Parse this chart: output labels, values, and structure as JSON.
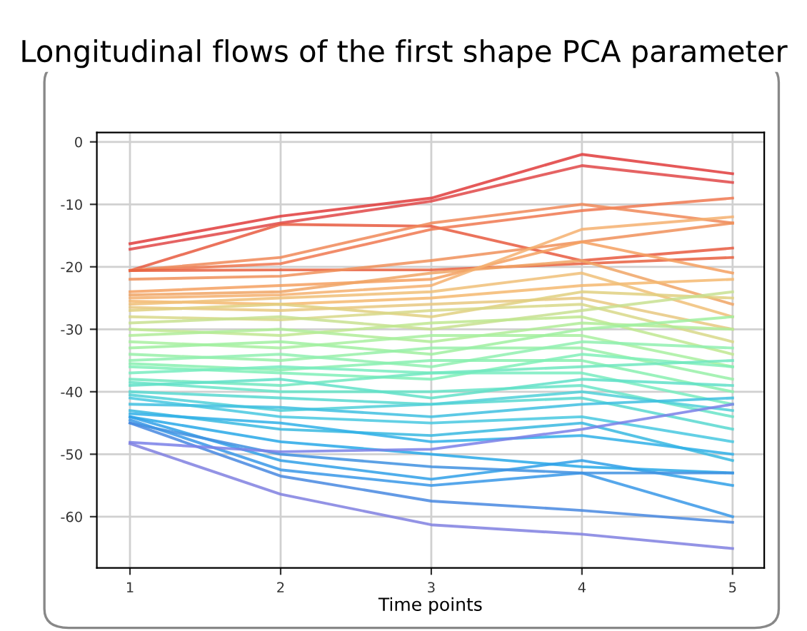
{
  "chart_data": {
    "type": "line",
    "title": "Longitudinal flows of the first shape PCA parameter",
    "xlabel": "Time points",
    "x": [
      1,
      2,
      3,
      4,
      5
    ],
    "xlim": [
      0.78,
      5.21
    ],
    "xticks": [
      1,
      2,
      3,
      4,
      5
    ],
    "ylim": [
      -68.2,
      1.5
    ],
    "yticks": [
      0,
      -10,
      -20,
      -30,
      -40,
      -50,
      -60
    ],
    "grid": true,
    "marker": "none",
    "line_style": "solid",
    "series": [
      {
        "color": "#e03c3c",
        "values": [
          -16.3,
          -11.9,
          -9,
          -2,
          -5.1
        ]
      },
      {
        "color": "#e04848",
        "values": [
          -17.2,
          -13,
          -9.5,
          -3.8,
          -6.5
        ]
      },
      {
        "color": "#e85a40",
        "values": [
          -20.6,
          -13.2,
          -13.5,
          -19,
          -17
        ]
      },
      {
        "color": "#f07850",
        "values": [
          -20.6,
          -19.5,
          -14,
          -11,
          -9
        ]
      },
      {
        "color": "#f08858",
        "values": [
          -20.6,
          -18.5,
          -13,
          -10,
          -13
        ]
      },
      {
        "color": "#e86040",
        "values": [
          -20.6,
          -20.5,
          -20.5,
          -19.5,
          -18.5
        ]
      },
      {
        "color": "#f0905a",
        "values": [
          -22,
          -21.5,
          -19,
          -16,
          -13
        ]
      },
      {
        "color": "#f5a060",
        "values": [
          -24,
          -23,
          -22,
          -16,
          -21
        ]
      },
      {
        "color": "#f0a565",
        "values": [
          -24.5,
          -24,
          -21,
          -19,
          -26
        ]
      },
      {
        "color": "#f5b070",
        "values": [
          -25,
          -24.5,
          -23,
          -14,
          -12
        ]
      },
      {
        "color": "#f5b870",
        "values": [
          -25.5,
          -26,
          -25,
          -23,
          -22
        ]
      },
      {
        "color": "#f0c078",
        "values": [
          -26,
          -25,
          -24,
          -21,
          -28
        ]
      },
      {
        "color": "#e8c880",
        "values": [
          -26.5,
          -27,
          -26,
          -25,
          -30
        ]
      },
      {
        "color": "#e0d080",
        "values": [
          -27,
          -26,
          -28,
          -24,
          -25
        ]
      },
      {
        "color": "#d8d888",
        "values": [
          -28,
          -28.5,
          -27,
          -26,
          -32
        ]
      },
      {
        "color": "#c8e090",
        "values": [
          -29,
          -28,
          -30,
          -27,
          -24
        ]
      },
      {
        "color": "#c0e890",
        "values": [
          -30,
          -31,
          -29,
          -28,
          -34
        ]
      },
      {
        "color": "#b0ec98",
        "values": [
          -31,
          -30,
          -32,
          -29,
          -30
        ]
      },
      {
        "color": "#a8f0a0",
        "values": [
          -32,
          -33,
          -31,
          -31,
          -36
        ]
      },
      {
        "color": "#a0f0a0",
        "values": [
          -33,
          -32,
          -34,
          -30,
          -28
        ]
      },
      {
        "color": "#98f0a8",
        "values": [
          -34,
          -35,
          -33,
          -33,
          -38
        ]
      },
      {
        "color": "#90f0b0",
        "values": [
          -35,
          -34,
          -36,
          -32,
          -33
        ]
      },
      {
        "color": "#88f0b0",
        "values": [
          -35.5,
          -36.5,
          -35,
          -35,
          -40
        ]
      },
      {
        "color": "#80f0b8",
        "values": [
          -36,
          -37,
          -38,
          -34,
          -36
        ]
      },
      {
        "color": "#78ecc0",
        "values": [
          -37,
          -36,
          -37,
          -37,
          -42
        ]
      },
      {
        "color": "#70e8c0",
        "values": [
          -38,
          -39,
          -37,
          -36,
          -35
        ]
      },
      {
        "color": "#68e4c8",
        "values": [
          -38.5,
          -40,
          -40,
          -39,
          -44
        ]
      },
      {
        "color": "#60e0c8",
        "values": [
          -39,
          -38,
          -41,
          -38,
          -39
        ]
      },
      {
        "color": "#58d8d0",
        "values": [
          -40,
          -41,
          -42,
          -41,
          -46
        ]
      },
      {
        "color": "#50d0d8",
        "values": [
          -40.5,
          -43,
          -42,
          -40,
          -43
        ]
      },
      {
        "color": "#48c8e0",
        "values": [
          -41,
          -44,
          -45,
          -44,
          -48
        ]
      },
      {
        "color": "#40c0e0",
        "values": [
          -42,
          -42.5,
          -44,
          -42,
          -41
        ]
      },
      {
        "color": "#38b8e0",
        "values": [
          -43,
          -46,
          -47,
          -45,
          -51
        ]
      },
      {
        "color": "#30b0e8",
        "values": [
          -43.5,
          -45,
          -48,
          -47,
          -50
        ]
      },
      {
        "color": "#28a8e8",
        "values": [
          -44,
          -48,
          -50,
          -52,
          -53
        ]
      },
      {
        "color": "#30a0e8",
        "values": [
          -44,
          -51,
          -54,
          -51,
          -55
        ]
      },
      {
        "color": "#3898e8",
        "values": [
          -44.5,
          -52.5,
          -55,
          -53,
          -60
        ]
      },
      {
        "color": "#4090e0",
        "values": [
          -45,
          -50,
          -52,
          -53,
          -53
        ]
      },
      {
        "color": "#4888e0",
        "values": [
          -45,
          -53.5,
          -57.5,
          -59,
          -60.9
        ]
      },
      {
        "color": "#7a80e8",
        "values": [
          -48.1,
          -49.6,
          -49.2,
          -46,
          -42
        ]
      },
      {
        "color": "#8080e0",
        "values": [
          -48.3,
          -56.4,
          -61.3,
          -62.8,
          -65.1
        ]
      }
    ]
  }
}
